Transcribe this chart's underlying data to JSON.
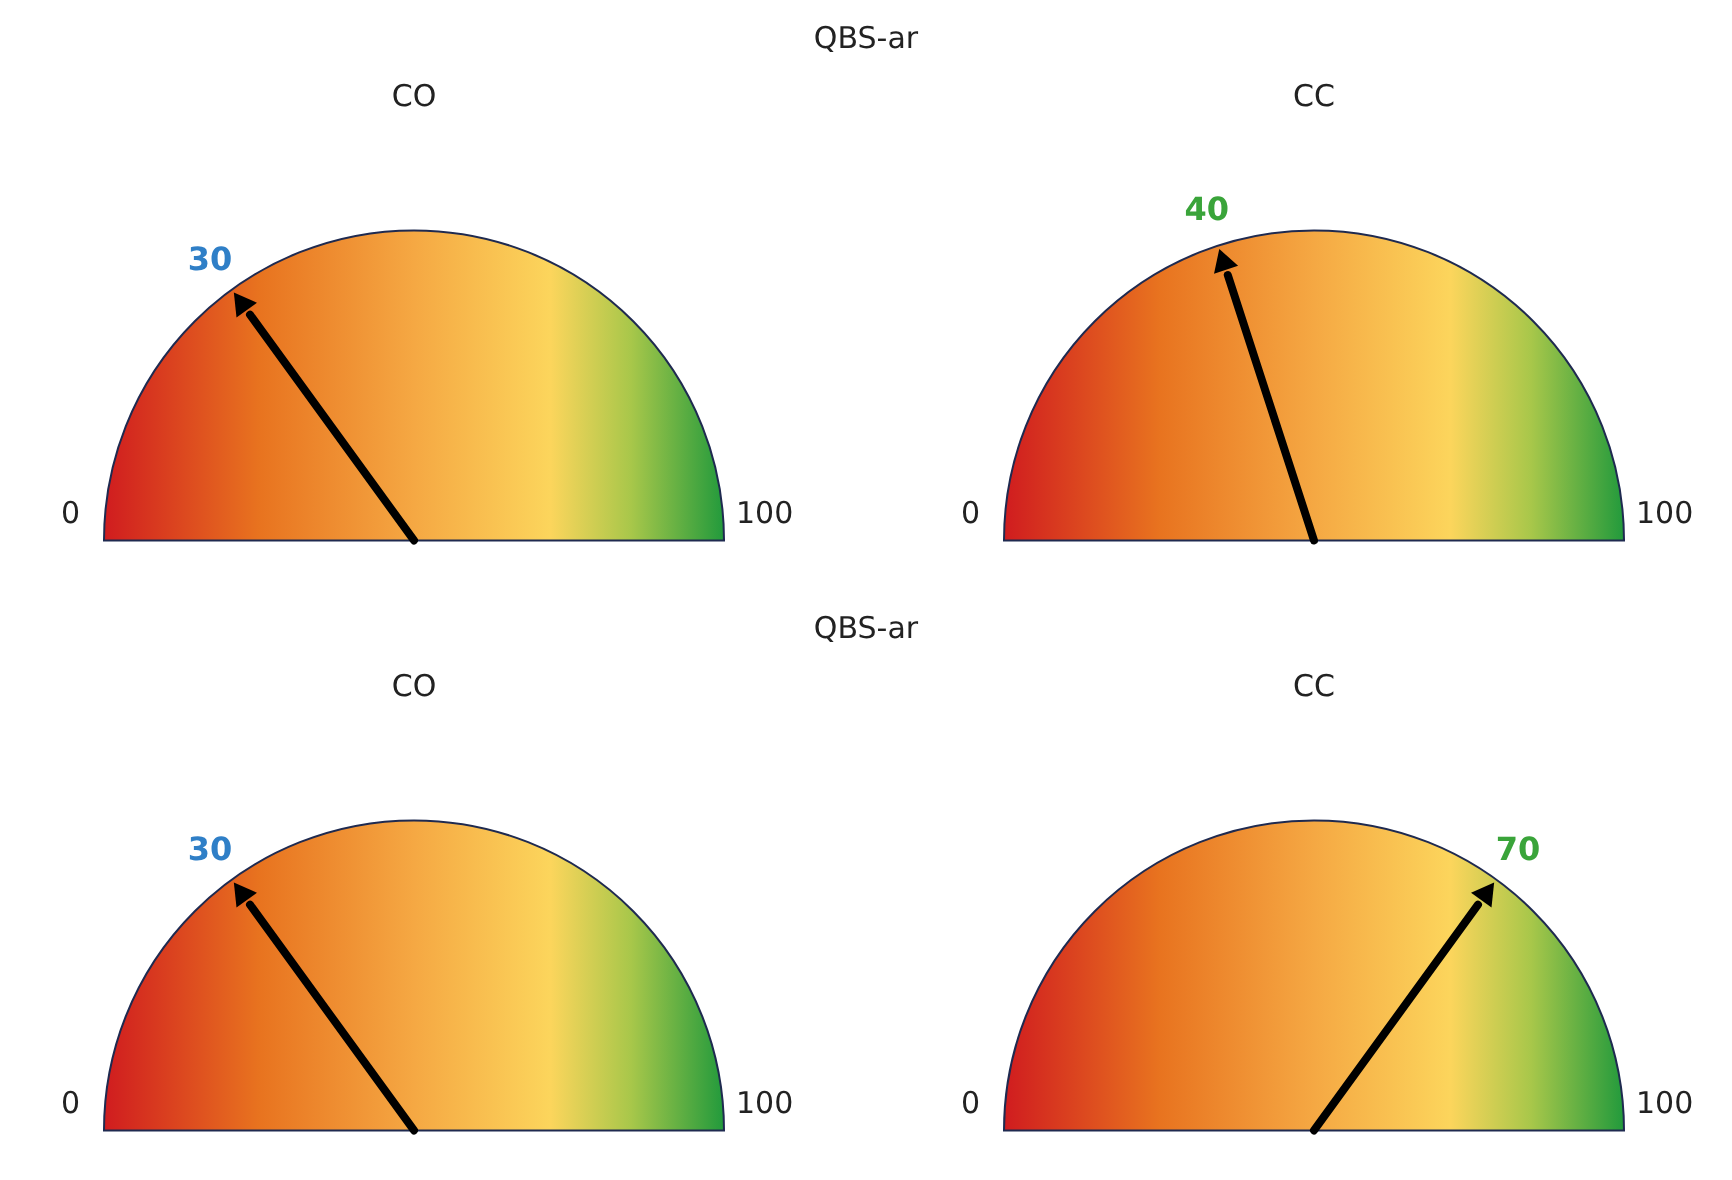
{
  "chart_data": [
    {
      "type": "other",
      "title": "CO",
      "values": [
        30
      ],
      "data_labels": true,
      "color": "#2f7fc7",
      "annotations": [
        "QBS-ar",
        "0",
        "100"
      ]
    },
    {
      "type": "other",
      "title": "CC",
      "values": [
        40
      ],
      "data_labels": true,
      "color": "#3aa43a",
      "annotations": [
        "0",
        "100"
      ]
    },
    {
      "type": "other",
      "title": "CO",
      "values": [
        30
      ],
      "data_labels": true,
      "color": "#2f7fc7",
      "annotations": [
        "QBS-ar",
        "0",
        "100"
      ]
    },
    {
      "type": "other",
      "title": "CC",
      "values": [
        70
      ],
      "data_labels": true,
      "color": "#3aa43a",
      "annotations": [
        "0",
        "100"
      ]
    }
  ]
}
